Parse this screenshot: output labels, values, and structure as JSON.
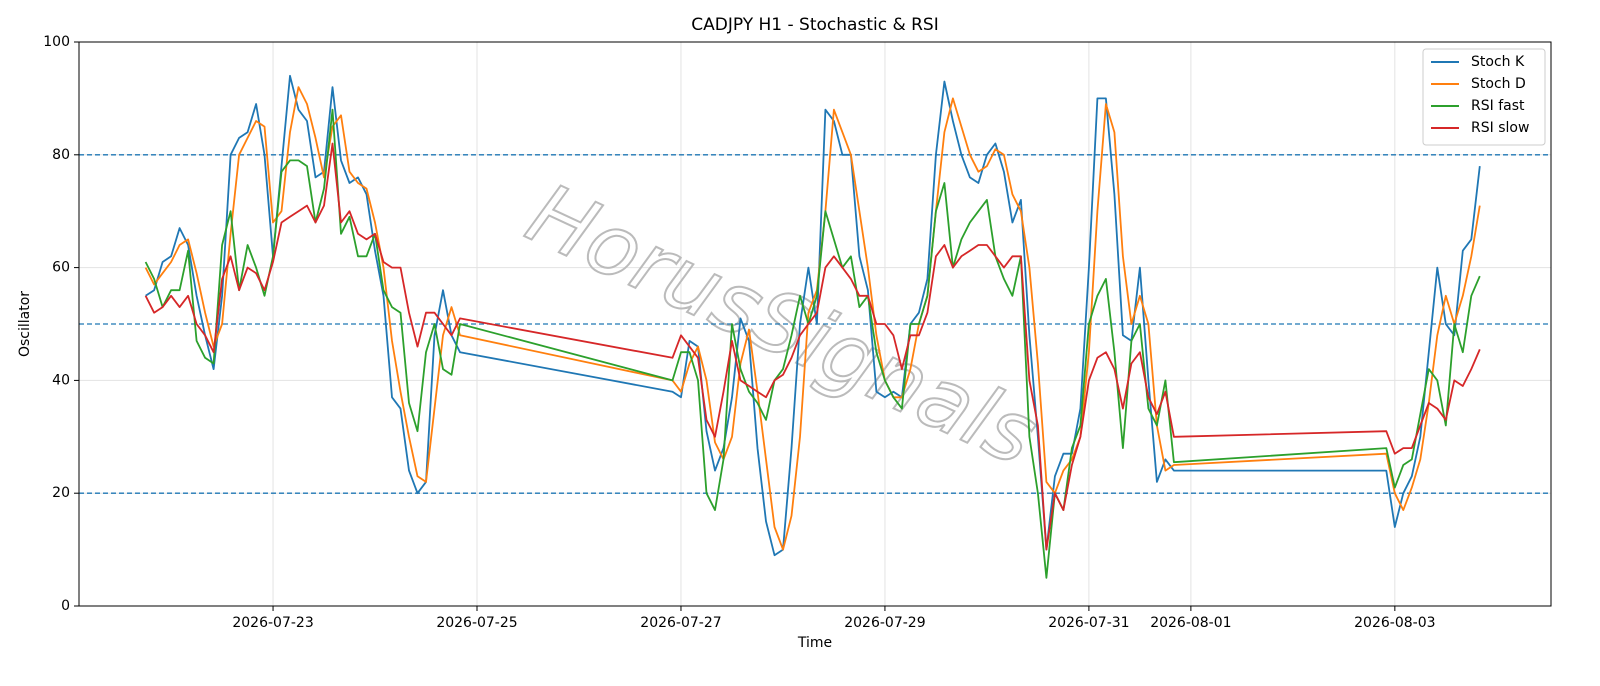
{
  "chart_data": {
    "type": "line",
    "title": "CADJPY H1 - Stochastic & RSI",
    "x_label": "Time",
    "y_label": "Oscillator",
    "watermark": "HorusSignals",
    "x": [
      "2026-07-21T18:00",
      "2026-07-21T20:00",
      "2026-07-21T22:00",
      "2026-07-22T00:00",
      "2026-07-22T02:00",
      "2026-07-22T04:00",
      "2026-07-22T06:00",
      "2026-07-22T08:00",
      "2026-07-22T10:00",
      "2026-07-22T12:00",
      "2026-07-22T14:00",
      "2026-07-22T16:00",
      "2026-07-22T18:00",
      "2026-07-22T20:00",
      "2026-07-22T22:00",
      "2026-07-23T00:00",
      "2026-07-23T02:00",
      "2026-07-23T04:00",
      "2026-07-23T06:00",
      "2026-07-23T08:00",
      "2026-07-23T10:00",
      "2026-07-23T12:00",
      "2026-07-23T14:00",
      "2026-07-23T16:00",
      "2026-07-23T18:00",
      "2026-07-23T20:00",
      "2026-07-23T22:00",
      "2026-07-24T00:00",
      "2026-07-24T02:00",
      "2026-07-24T04:00",
      "2026-07-24T06:00",
      "2026-07-24T08:00",
      "2026-07-24T10:00",
      "2026-07-24T12:00",
      "2026-07-24T14:00",
      "2026-07-24T16:00",
      "2026-07-24T18:00",
      "2026-07-24T20:00",
      "2026-07-26T22:00",
      "2026-07-27T00:00",
      "2026-07-27T02:00",
      "2026-07-27T04:00",
      "2026-07-27T06:00",
      "2026-07-27T08:00",
      "2026-07-27T10:00",
      "2026-07-27T12:00",
      "2026-07-27T14:00",
      "2026-07-27T16:00",
      "2026-07-27T18:00",
      "2026-07-27T20:00",
      "2026-07-27T22:00",
      "2026-07-28T00:00",
      "2026-07-28T02:00",
      "2026-07-28T04:00",
      "2026-07-28T06:00",
      "2026-07-28T08:00",
      "2026-07-28T10:00",
      "2026-07-28T12:00",
      "2026-07-28T14:00",
      "2026-07-28T16:00",
      "2026-07-28T18:00",
      "2026-07-28T20:00",
      "2026-07-28T22:00",
      "2026-07-29T00:00",
      "2026-07-29T02:00",
      "2026-07-29T04:00",
      "2026-07-29T06:00",
      "2026-07-29T08:00",
      "2026-07-29T10:00",
      "2026-07-29T12:00",
      "2026-07-29T14:00",
      "2026-07-29T16:00",
      "2026-07-29T18:00",
      "2026-07-29T20:00",
      "2026-07-29T22:00",
      "2026-07-30T00:00",
      "2026-07-30T02:00",
      "2026-07-30T04:00",
      "2026-07-30T06:00",
      "2026-07-30T08:00",
      "2026-07-30T10:00",
      "2026-07-30T12:00",
      "2026-07-30T14:00",
      "2026-07-30T16:00",
      "2026-07-30T18:00",
      "2026-07-30T20:00",
      "2026-07-30T22:00",
      "2026-07-31T00:00",
      "2026-07-31T02:00",
      "2026-07-31T04:00",
      "2026-07-31T06:00",
      "2026-07-31T08:00",
      "2026-07-31T10:00",
      "2026-07-31T12:00",
      "2026-07-31T14:00",
      "2026-07-31T16:00",
      "2026-07-31T18:00",
      "2026-07-31T20:00",
      "2026-08-02T22:00",
      "2026-08-03T00:00",
      "2026-08-03T02:00",
      "2026-08-03T04:00",
      "2026-08-03T06:00",
      "2026-08-03T08:00",
      "2026-08-03T10:00",
      "2026-08-03T12:00",
      "2026-08-03T14:00",
      "2026-08-03T16:00",
      "2026-08-03T18:00",
      "2026-08-03T20:00"
    ],
    "series": [
      {
        "name": "Stoch K",
        "color": "#1f77b4",
        "values": [
          55,
          56,
          61,
          62,
          67,
          64,
          55,
          48,
          42,
          55,
          80,
          83,
          84,
          89,
          80,
          62,
          78,
          94,
          88,
          86,
          76,
          77,
          92,
          79,
          75,
          76,
          73,
          63,
          55,
          37,
          35,
          24,
          20,
          22,
          48,
          56,
          48,
          45,
          38,
          37,
          47,
          46,
          31,
          24,
          28,
          37,
          51,
          47,
          28,
          15,
          9,
          10,
          28,
          50,
          60,
          50,
          88,
          86,
          80,
          80,
          62,
          56,
          38,
          37,
          38,
          37,
          50,
          52,
          58,
          80,
          93,
          86,
          80,
          76,
          75,
          80,
          82,
          77,
          68,
          72,
          48,
          30,
          10,
          23,
          27,
          27,
          35,
          60,
          90,
          90,
          73,
          48,
          47,
          60,
          40,
          22,
          26,
          24,
          24,
          14,
          20,
          23,
          30,
          45,
          60,
          50,
          48,
          63,
          65,
          78
        ]
      },
      {
        "name": "Stoch D",
        "color": "#ff7f0e",
        "values": [
          60,
          57,
          59,
          61,
          64,
          65,
          59,
          52,
          46,
          50,
          66,
          80,
          83,
          86,
          85,
          68,
          70,
          84,
          92,
          89,
          83,
          76,
          85,
          87,
          77,
          75,
          74,
          68,
          60,
          47,
          38,
          30,
          23,
          22,
          35,
          48,
          53,
          48,
          40,
          38,
          43,
          46,
          40,
          29,
          26,
          30,
          43,
          49,
          38,
          26,
          14,
          10,
          16,
          30,
          52,
          56,
          70,
          88,
          84,
          80,
          70,
          60,
          48,
          40,
          37,
          37,
          42,
          50,
          55,
          70,
          84,
          90,
          85,
          80,
          77,
          78,
          81,
          80,
          73,
          70,
          60,
          43,
          22,
          20,
          24,
          26,
          30,
          45,
          70,
          89,
          84,
          62,
          50,
          55,
          50,
          32,
          24,
          25,
          27,
          20,
          17,
          21,
          26,
          36,
          48,
          55,
          50,
          55,
          62,
          71
        ]
      },
      {
        "name": "RSI fast",
        "color": "#2ca02c",
        "values": [
          61,
          58,
          53,
          56,
          56,
          63,
          47,
          44,
          43,
          64,
          70,
          56,
          64,
          60,
          55,
          62,
          77,
          79,
          79,
          78,
          68,
          74,
          88,
          66,
          69,
          62,
          62,
          66,
          56,
          53,
          52,
          36,
          31,
          45,
          50,
          42,
          41,
          50,
          40,
          45,
          45,
          40,
          20,
          17,
          26,
          50,
          42,
          38,
          36,
          33,
          40,
          42,
          48,
          55,
          50,
          55,
          70,
          65,
          60,
          62,
          53,
          55,
          45,
          40,
          37,
          35,
          50,
          50,
          55,
          70,
          75,
          60,
          65,
          68,
          70,
          72,
          62,
          58,
          55,
          62,
          30,
          20,
          5,
          20,
          17,
          28,
          32,
          50,
          55,
          58,
          45,
          28,
          47,
          50,
          35,
          32,
          40,
          25.5,
          28,
          21,
          25,
          26,
          34,
          42,
          40,
          32,
          50,
          45,
          55,
          58.5
        ]
      },
      {
        "name": "RSI slow",
        "color": "#d62728",
        "values": [
          55,
          52,
          53,
          55,
          53,
          55,
          50,
          48,
          45,
          58,
          62,
          56,
          60,
          59,
          56,
          61,
          68,
          69,
          70,
          71,
          68,
          71,
          82,
          68,
          70,
          66,
          65,
          66,
          61,
          60,
          60,
          52,
          46,
          52,
          52,
          50,
          48,
          51,
          44,
          48,
          46,
          44,
          33,
          30,
          38,
          47,
          40,
          39,
          38,
          37,
          40,
          41,
          44,
          48,
          50,
          52,
          60,
          62,
          60,
          58,
          55,
          55,
          50,
          50,
          48,
          42,
          48,
          48,
          52,
          62,
          64,
          60,
          62,
          63,
          64,
          64,
          62,
          60,
          62,
          62,
          40,
          32,
          10,
          20,
          17,
          25,
          30,
          40,
          44,
          45,
          42,
          35,
          43,
          45,
          37,
          34,
          38,
          30,
          31,
          27,
          28,
          28,
          32,
          36,
          35,
          33,
          40,
          39,
          42,
          45.5
        ]
      }
    ],
    "xlim": [
      "2026-07-21T02:20",
      "2026-08-04T12:45"
    ],
    "xticks": [
      "2026-07-23",
      "2026-07-25",
      "2026-07-27",
      "2026-07-29",
      "2026-07-31",
      "2026-08-01",
      "2026-08-03"
    ],
    "ylim": [
      0,
      100
    ],
    "yticks": [
      0,
      20,
      40,
      60,
      80,
      100
    ],
    "reference_lines": [
      20,
      50,
      80
    ],
    "reference_color": "#1f77b4",
    "grid": true,
    "legend": "upper right"
  }
}
